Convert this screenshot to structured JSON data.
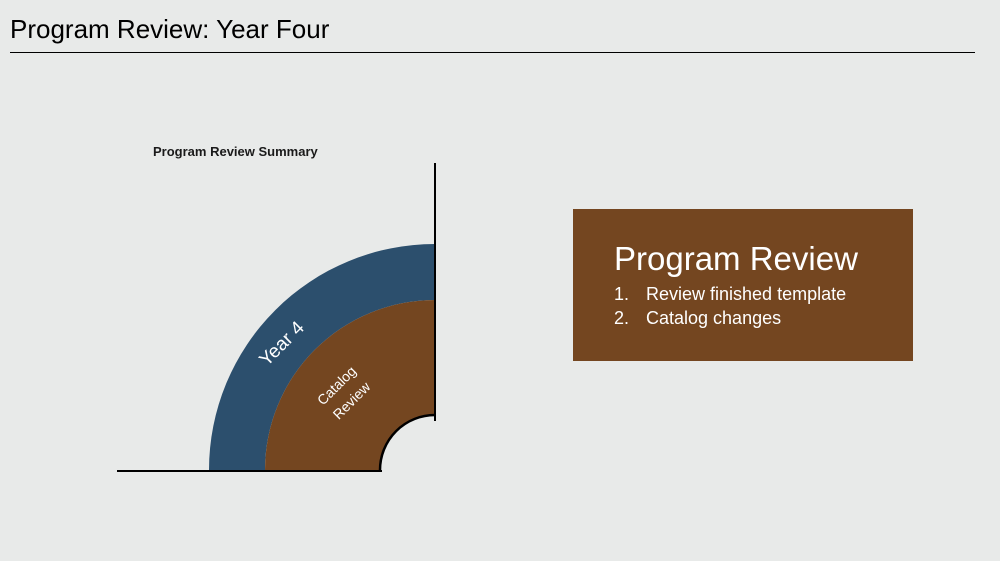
{
  "slide": {
    "title": "Program Review: Year Four"
  },
  "diagram": {
    "label": "Program Review Summary",
    "outer_ring_label": "Year 4",
    "inner_ring_label_line1": "Catalog",
    "inner_ring_label_line2": "Review",
    "colors": {
      "outer_ring": "#2c4f6d",
      "inner_ring": "#744620",
      "axis": "#000000"
    }
  },
  "review_box": {
    "heading": "Program Review",
    "items": [
      {
        "number": "1.",
        "text": "Review finished template"
      },
      {
        "number": "2.",
        "text": "Catalog changes"
      }
    ],
    "background": "#744620"
  }
}
